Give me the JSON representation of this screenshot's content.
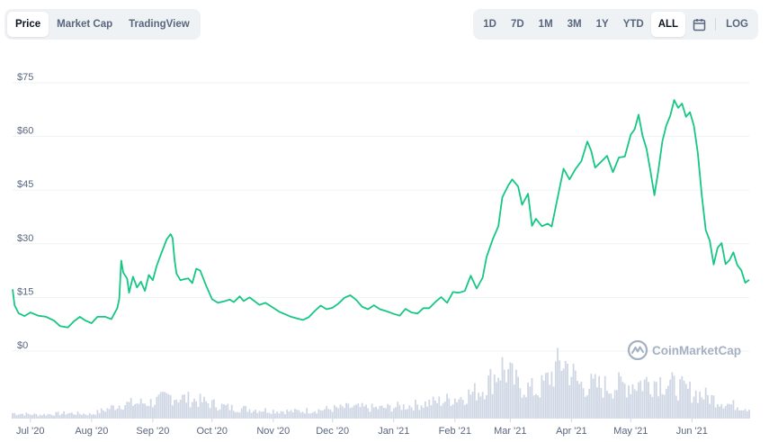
{
  "tabs": {
    "items": [
      {
        "label": "Price",
        "active": true
      },
      {
        "label": "Market Cap",
        "active": false
      },
      {
        "label": "TradingView",
        "active": false
      }
    ]
  },
  "ranges": {
    "items": [
      {
        "label": "1D",
        "active": false
      },
      {
        "label": "7D",
        "active": false
      },
      {
        "label": "1M",
        "active": false
      },
      {
        "label": "3M",
        "active": false
      },
      {
        "label": "1Y",
        "active": false
      },
      {
        "label": "YTD",
        "active": false
      },
      {
        "label": "ALL",
        "active": true
      }
    ],
    "calendar_icon": "calendar-icon",
    "log_label": "LOG"
  },
  "watermark": {
    "text": "CoinMarketCap",
    "icon": "coinmarketcap-logo-icon"
  },
  "colors": {
    "line": "#16c784",
    "volume": "#cfd6e4",
    "grid": "#eff2f5"
  },
  "chart_data": {
    "type": "line",
    "title": "",
    "xlabel": "",
    "ylabel": "",
    "grid": true,
    "y_tick_labels": [
      "$0",
      "$15",
      "$30",
      "$45",
      "$60",
      "$75"
    ],
    "y_tick_values": [
      0,
      15,
      30,
      45,
      60,
      75
    ],
    "ylim": [
      0,
      75
    ],
    "x_tick_labels": [
      "Jul '20",
      "Aug '20",
      "Sep '20",
      "Oct '20",
      "Nov '20",
      "Dec '20",
      "Jan '21",
      "Feb '21",
      "Mar '21",
      "Apr '21",
      "May '21",
      "Jun '21"
    ],
    "x_tick_dates": [
      "2020-07-01",
      "2020-08-01",
      "2020-09-01",
      "2020-10-01",
      "2020-11-01",
      "2020-12-01",
      "2021-01-01",
      "2021-02-01",
      "2021-03-01",
      "2021-04-01",
      "2021-05-01",
      "2021-06-01"
    ],
    "xlim": [
      "2020-06-22",
      "2021-06-30"
    ],
    "series": [
      {
        "type": "line",
        "points": [
          [
            "2020-06-22",
            17.3
          ],
          [
            "2020-06-23",
            12.8
          ],
          [
            "2020-06-25",
            10.6
          ],
          [
            "2020-06-28",
            9.8
          ],
          [
            "2020-07-01",
            10.8
          ],
          [
            "2020-07-05",
            9.9
          ],
          [
            "2020-07-09",
            9.6
          ],
          [
            "2020-07-13",
            8.5
          ],
          [
            "2020-07-16",
            7.0
          ],
          [
            "2020-07-20",
            6.6
          ],
          [
            "2020-07-23",
            8.3
          ],
          [
            "2020-07-26",
            9.6
          ],
          [
            "2020-07-29",
            8.5
          ],
          [
            "2020-08-01",
            7.8
          ],
          [
            "2020-08-04",
            9.6
          ],
          [
            "2020-08-08",
            9.6
          ],
          [
            "2020-08-11",
            8.9
          ],
          [
            "2020-08-14",
            12.0
          ],
          [
            "2020-08-15",
            14.6
          ],
          [
            "2020-08-16",
            25.3
          ],
          [
            "2020-08-17",
            22.0
          ],
          [
            "2020-08-19",
            20.2
          ],
          [
            "2020-08-20",
            16.3
          ],
          [
            "2020-08-22",
            20.8
          ],
          [
            "2020-08-24",
            17.8
          ],
          [
            "2020-08-26",
            19.4
          ],
          [
            "2020-08-28",
            16.8
          ],
          [
            "2020-08-30",
            21.3
          ],
          [
            "2020-09-01",
            19.8
          ],
          [
            "2020-09-03",
            23.9
          ],
          [
            "2020-09-05",
            26.9
          ],
          [
            "2020-09-08",
            31.2
          ],
          [
            "2020-09-10",
            32.7
          ],
          [
            "2020-09-11",
            31.6
          ],
          [
            "2020-09-12",
            25.7
          ],
          [
            "2020-09-13",
            21.7
          ],
          [
            "2020-09-15",
            19.8
          ],
          [
            "2020-09-17",
            20.1
          ],
          [
            "2020-09-19",
            20.3
          ],
          [
            "2020-09-21",
            19.0
          ],
          [
            "2020-09-23",
            23.0
          ],
          [
            "2020-09-25",
            22.5
          ],
          [
            "2020-09-28",
            18.3
          ],
          [
            "2020-10-01",
            14.5
          ],
          [
            "2020-10-04",
            13.5
          ],
          [
            "2020-10-07",
            13.9
          ],
          [
            "2020-10-10",
            14.4
          ],
          [
            "2020-10-12",
            13.7
          ],
          [
            "2020-10-15",
            15.3
          ],
          [
            "2020-10-17",
            14.0
          ],
          [
            "2020-10-20",
            15.0
          ],
          [
            "2020-10-25",
            12.9
          ],
          [
            "2020-10-28",
            13.5
          ],
          [
            "2020-11-01",
            12.1
          ],
          [
            "2020-11-04",
            11.0
          ],
          [
            "2020-11-07",
            10.3
          ],
          [
            "2020-11-10",
            9.6
          ],
          [
            "2020-11-13",
            9.1
          ],
          [
            "2020-11-16",
            8.7
          ],
          [
            "2020-11-19",
            9.5
          ],
          [
            "2020-11-22",
            11.2
          ],
          [
            "2020-11-25",
            12.7
          ],
          [
            "2020-11-28",
            11.7
          ],
          [
            "2020-12-01",
            12.1
          ],
          [
            "2020-12-04",
            13.3
          ],
          [
            "2020-12-07",
            14.9
          ],
          [
            "2020-12-10",
            15.6
          ],
          [
            "2020-12-13",
            14.3
          ],
          [
            "2020-12-16",
            12.4
          ],
          [
            "2020-12-19",
            11.7
          ],
          [
            "2020-12-22",
            12.8
          ],
          [
            "2020-12-25",
            11.7
          ],
          [
            "2020-12-28",
            11.2
          ],
          [
            "2021-01-01",
            10.4
          ],
          [
            "2021-01-04",
            9.9
          ],
          [
            "2021-01-07",
            11.8
          ],
          [
            "2021-01-10",
            10.8
          ],
          [
            "2021-01-13",
            10.5
          ],
          [
            "2021-01-16",
            12.0
          ],
          [
            "2021-01-19",
            12.0
          ],
          [
            "2021-01-22",
            13.7
          ],
          [
            "2021-01-25",
            15.1
          ],
          [
            "2021-01-28",
            13.5
          ],
          [
            "2021-01-31",
            16.5
          ],
          [
            "2021-02-03",
            16.3
          ],
          [
            "2021-02-06",
            16.8
          ],
          [
            "2021-02-09",
            21.1
          ],
          [
            "2021-02-12",
            17.5
          ],
          [
            "2021-02-15",
            20.5
          ],
          [
            "2021-02-17",
            26.3
          ],
          [
            "2021-02-20",
            31.1
          ],
          [
            "2021-02-23",
            34.9
          ],
          [
            "2021-02-25",
            43.0
          ],
          [
            "2021-02-28",
            46.3
          ],
          [
            "2021-03-02",
            48.0
          ],
          [
            "2021-03-05",
            46.0
          ],
          [
            "2021-03-07",
            40.9
          ],
          [
            "2021-03-10",
            44.0
          ],
          [
            "2021-03-12",
            35.0
          ],
          [
            "2021-03-14",
            37.0
          ],
          [
            "2021-03-17",
            34.9
          ],
          [
            "2021-03-20",
            35.6
          ],
          [
            "2021-03-22",
            34.8
          ],
          [
            "2021-03-25",
            42.9
          ],
          [
            "2021-03-28",
            51.0
          ],
          [
            "2021-03-31",
            48.0
          ],
          [
            "2021-04-03",
            50.9
          ],
          [
            "2021-04-06",
            53.1
          ],
          [
            "2021-04-09",
            58.6
          ],
          [
            "2021-04-11",
            56.0
          ],
          [
            "2021-04-13",
            51.3
          ],
          [
            "2021-04-16",
            52.9
          ],
          [
            "2021-04-19",
            54.6
          ],
          [
            "2021-04-22",
            50.0
          ],
          [
            "2021-04-25",
            54.1
          ],
          [
            "2021-04-28",
            54.4
          ],
          [
            "2021-05-01",
            60.5
          ],
          [
            "2021-05-03",
            62.0
          ],
          [
            "2021-05-05",
            66.1
          ],
          [
            "2021-05-07",
            60.2
          ],
          [
            "2021-05-09",
            56.6
          ],
          [
            "2021-05-11",
            50.3
          ],
          [
            "2021-05-13",
            43.6
          ],
          [
            "2021-05-15",
            50.5
          ],
          [
            "2021-05-17",
            58.6
          ],
          [
            "2021-05-19",
            63.1
          ],
          [
            "2021-05-21",
            65.8
          ],
          [
            "2021-05-23",
            70.2
          ],
          [
            "2021-05-25",
            68.0
          ],
          [
            "2021-05-27",
            69.2
          ],
          [
            "2021-05-29",
            65.5
          ],
          [
            "2021-05-31",
            66.8
          ],
          [
            "2021-06-02",
            63.0
          ],
          [
            "2021-06-04",
            55.3
          ],
          [
            "2021-06-06",
            43.5
          ],
          [
            "2021-06-08",
            33.8
          ],
          [
            "2021-06-10",
            30.9
          ],
          [
            "2021-06-12",
            24.2
          ],
          [
            "2021-06-14",
            28.9
          ],
          [
            "2021-06-16",
            30.2
          ],
          [
            "2021-06-18",
            24.3
          ],
          [
            "2021-06-20",
            25.4
          ],
          [
            "2021-06-22",
            27.6
          ],
          [
            "2021-06-24",
            24.0
          ],
          [
            "2021-06-26",
            22.6
          ],
          [
            "2021-06-28",
            19.1
          ],
          [
            "2021-06-30",
            19.9
          ]
        ]
      }
    ],
    "volume": {
      "type": "bar",
      "points": [
        [
          "2020-06-22",
          1.0
        ],
        [
          "2020-07-05",
          0.7
        ],
        [
          "2020-07-20",
          1.0
        ],
        [
          "2020-08-01",
          0.8
        ],
        [
          "2020-08-16",
          2.6
        ],
        [
          "2020-09-01",
          3.0
        ],
        [
          "2020-09-10",
          4.1
        ],
        [
          "2020-09-25",
          3.2
        ],
        [
          "2020-10-10",
          2.0
        ],
        [
          "2020-10-25",
          1.6
        ],
        [
          "2020-11-10",
          1.3
        ],
        [
          "2020-11-25",
          1.6
        ],
        [
          "2020-12-10",
          2.1
        ],
        [
          "2020-12-25",
          1.9
        ],
        [
          "2021-01-10",
          2.4
        ],
        [
          "2021-01-25",
          3.2
        ],
        [
          "2021-02-05",
          4.0
        ],
        [
          "2021-02-15",
          5.4
        ],
        [
          "2021-02-25",
          9.4
        ],
        [
          "2021-03-05",
          6.1
        ],
        [
          "2021-03-15",
          5.0
        ],
        [
          "2021-03-28",
          10.6
        ],
        [
          "2021-04-05",
          6.2
        ],
        [
          "2021-04-20",
          5.8
        ],
        [
          "2021-05-05",
          6.5
        ],
        [
          "2021-05-15",
          7.0
        ],
        [
          "2021-05-25",
          5.7
        ],
        [
          "2021-06-08",
          4.1
        ],
        [
          "2021-06-20",
          2.6
        ],
        [
          "2021-06-30",
          1.9
        ]
      ]
    }
  }
}
